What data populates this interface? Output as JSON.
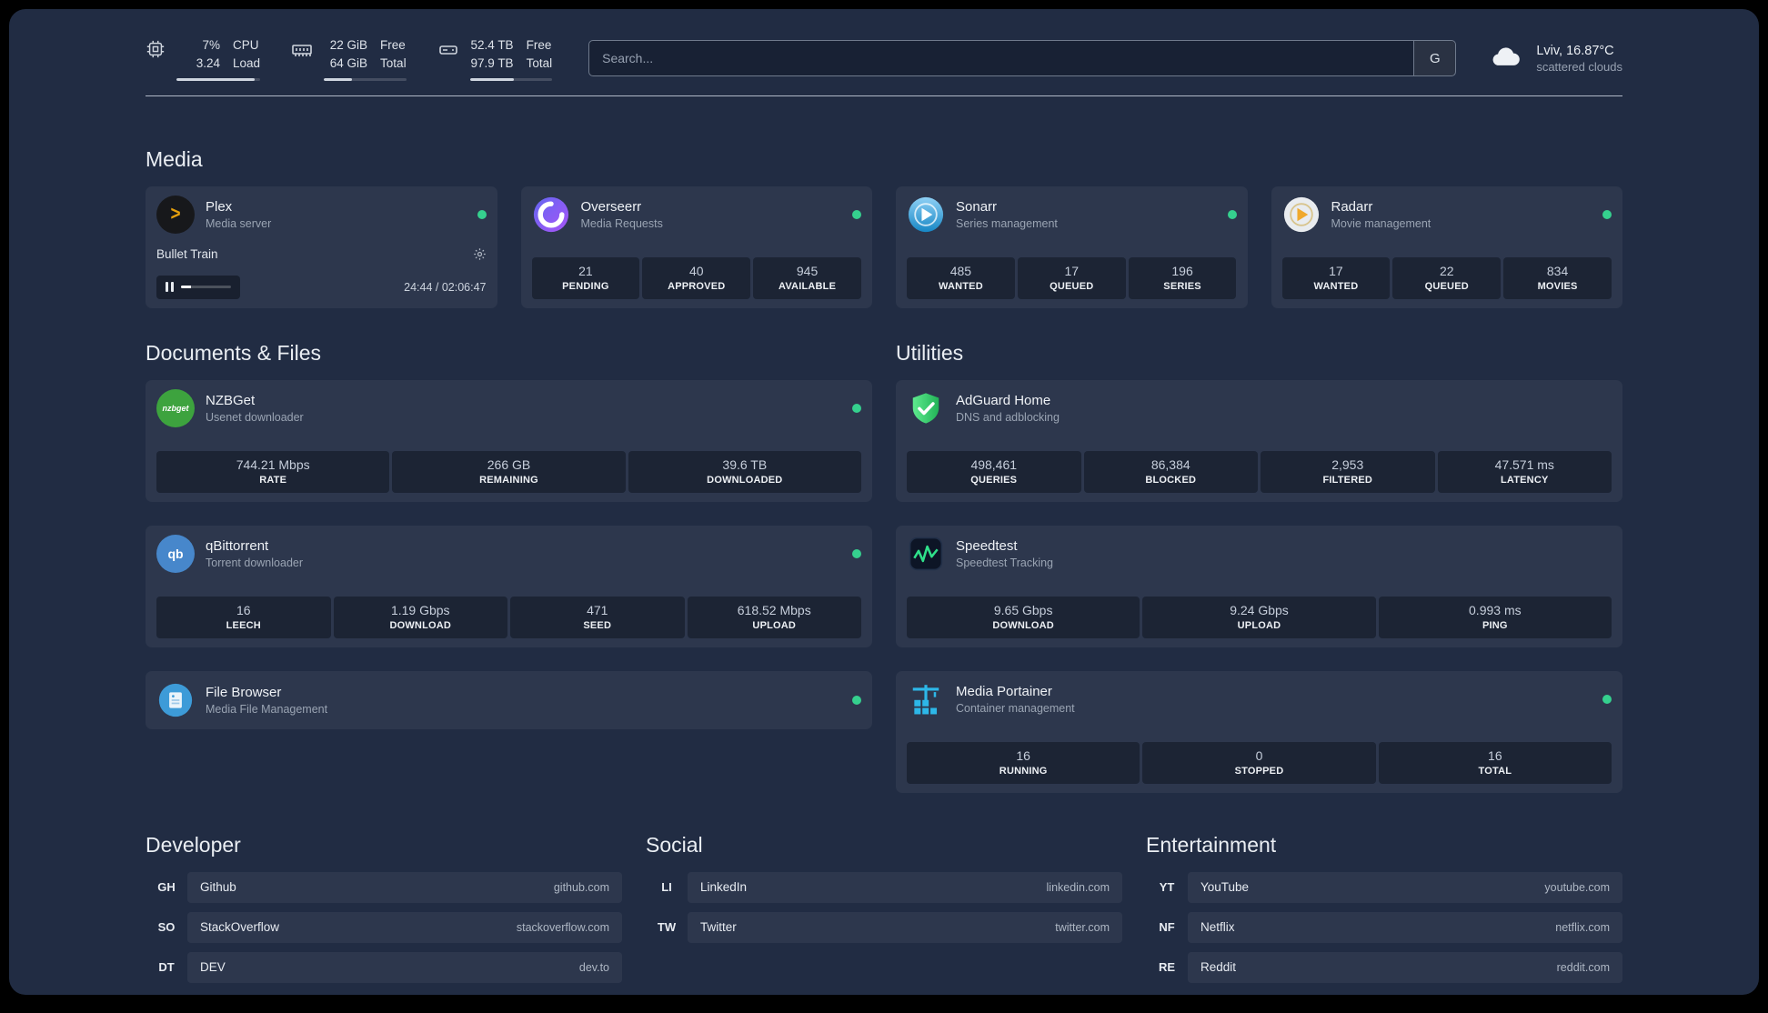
{
  "colors": {
    "status_online": "#35d08e",
    "plex_accent": "#e5a00d"
  },
  "topbar": {
    "cpu": {
      "icon": "cpu-icon",
      "value_top": "7%",
      "value_bottom": "3.24",
      "label_top": "CPU",
      "label_bottom": "Load",
      "progress": 93
    },
    "memory": {
      "icon": "memory-icon",
      "value_top": "22 GiB",
      "value_bottom": "64 GiB",
      "label_top": "Free",
      "label_bottom": "Total",
      "progress": 34
    },
    "disk": {
      "icon": "disk-icon",
      "value_top": "52.4 TB",
      "value_bottom": "97.9 TB",
      "label_top": "Free",
      "label_bottom": "Total",
      "progress": 53
    },
    "search": {
      "placeholder": "Search...",
      "provider_label": "G"
    },
    "weather": {
      "icon": "cloud-icon",
      "location": "Lviv, 16.87°C",
      "condition": "scattered clouds"
    }
  },
  "sections": {
    "media_title": "Media",
    "documents_title": "Documents & Files",
    "utilities_title": "Utilities",
    "developer_title": "Developer",
    "social_title": "Social",
    "entertainment_title": "Entertainment"
  },
  "media": {
    "cards": [
      {
        "name": "Plex",
        "desc": "Media server",
        "icon": "plex-icon",
        "online": true,
        "player": {
          "track": "Bullet Train",
          "time": "24:44 / 02:06:47",
          "progress": 20
        }
      },
      {
        "name": "Overseerr",
        "desc": "Media Requests",
        "icon": "overseerr-icon",
        "online": true,
        "stats": [
          {
            "value": "21",
            "label": "PENDING"
          },
          {
            "value": "40",
            "label": "APPROVED"
          },
          {
            "value": "945",
            "label": "AVAILABLE"
          }
        ]
      },
      {
        "name": "Sonarr",
        "desc": "Series management",
        "icon": "sonarr-icon",
        "online": true,
        "stats": [
          {
            "value": "485",
            "label": "WANTED"
          },
          {
            "value": "17",
            "label": "QUEUED"
          },
          {
            "value": "196",
            "label": "SERIES"
          }
        ]
      },
      {
        "name": "Radarr",
        "desc": "Movie management",
        "icon": "radarr-icon",
        "online": true,
        "stats": [
          {
            "value": "17",
            "label": "WANTED"
          },
          {
            "value": "22",
            "label": "QUEUED"
          },
          {
            "value": "834",
            "label": "MOVIES"
          }
        ]
      }
    ]
  },
  "documents": {
    "cards": [
      {
        "name": "NZBGet",
        "desc": "Usenet downloader",
        "icon": "nzbget-icon",
        "online": true,
        "stats": [
          {
            "value": "744.21 Mbps",
            "label": "RATE"
          },
          {
            "value": "266 GB",
            "label": "REMAINING"
          },
          {
            "value": "39.6 TB",
            "label": "DOWNLOADED"
          }
        ]
      },
      {
        "name": "qBittorrent",
        "desc": "Torrent downloader",
        "icon": "qbittorrent-icon",
        "online": true,
        "stats": [
          {
            "value": "16",
            "label": "LEECH"
          },
          {
            "value": "1.19 Gbps",
            "label": "DOWNLOAD"
          },
          {
            "value": "471",
            "label": "SEED"
          },
          {
            "value": "618.52 Mbps",
            "label": "UPLOAD"
          }
        ]
      },
      {
        "name": "File Browser",
        "desc": "Media File Management",
        "icon": "filebrowser-icon",
        "online": true
      }
    ]
  },
  "utilities": {
    "cards": [
      {
        "name": "AdGuard Home",
        "desc": "DNS and adblocking",
        "icon": "adguard-icon",
        "stats": [
          {
            "value": "498,461",
            "label": "QUERIES"
          },
          {
            "value": "86,384",
            "label": "BLOCKED"
          },
          {
            "value": "2,953",
            "label": "FILTERED"
          },
          {
            "value": "47.571 ms",
            "label": "LATENCY"
          }
        ]
      },
      {
        "name": "Speedtest",
        "desc": "Speedtest Tracking",
        "icon": "speedtest-icon",
        "stats": [
          {
            "value": "9.65 Gbps",
            "label": "DOWNLOAD"
          },
          {
            "value": "9.24 Gbps",
            "label": "UPLOAD"
          },
          {
            "value": "0.993 ms",
            "label": "PING"
          }
        ]
      },
      {
        "name": "Media Portainer",
        "desc": "Container management",
        "icon": "portainer-icon",
        "online": true,
        "stats": [
          {
            "value": "16",
            "label": "RUNNING"
          },
          {
            "value": "0",
            "label": "STOPPED"
          },
          {
            "value": "16",
            "label": "TOTAL"
          }
        ]
      }
    ]
  },
  "bookmarks": {
    "developer": [
      {
        "abbr": "GH",
        "name": "Github",
        "url": "github.com"
      },
      {
        "abbr": "SO",
        "name": "StackOverflow",
        "url": "stackoverflow.com"
      },
      {
        "abbr": "DT",
        "name": "DEV",
        "url": "dev.to"
      }
    ],
    "social": [
      {
        "abbr": "LI",
        "name": "LinkedIn",
        "url": "linkedin.com"
      },
      {
        "abbr": "TW",
        "name": "Twitter",
        "url": "twitter.com"
      }
    ],
    "entertainment": [
      {
        "abbr": "YT",
        "name": "YouTube",
        "url": "youtube.com"
      },
      {
        "abbr": "NF",
        "name": "Netflix",
        "url": "netflix.com"
      },
      {
        "abbr": "RE",
        "name": "Reddit",
        "url": "reddit.com"
      }
    ]
  }
}
